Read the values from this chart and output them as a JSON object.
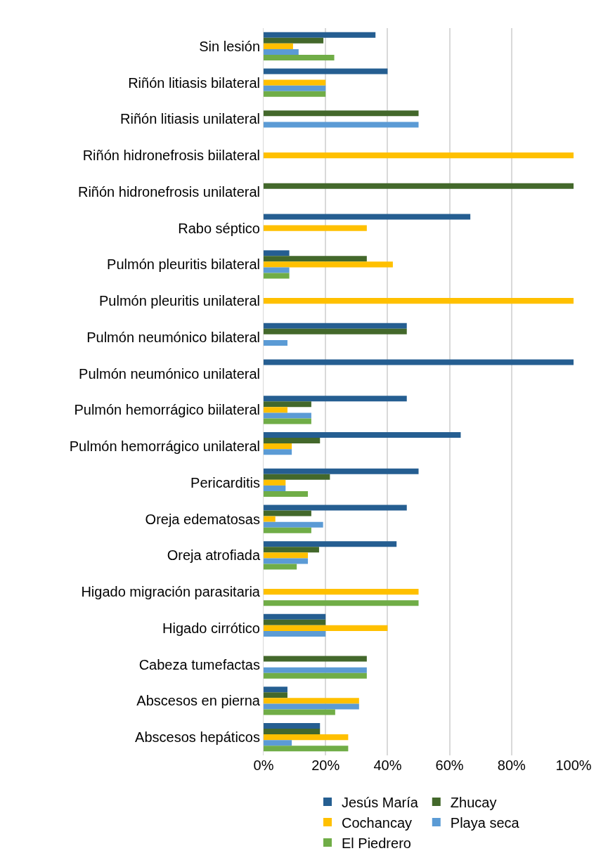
{
  "chart_data": {
    "type": "bar",
    "orientation": "horizontal",
    "categories": [
      "Sin lesión",
      "Riñón litiasis bilateral",
      "Riñón litiasis unilateral",
      "Riñón hidronefrosis biilateral",
      "Riñón hidronefrosis unilateral",
      "Rabo séptico",
      "Pulmón pleuritis bilateral",
      "Pulmón pleuritis unilateral",
      "Pulmón neumónico bilateral",
      "Pulmón neumónico unilateral",
      "Pulmón hemorrágico biilateral",
      "Pulmón hemorrágico unilateral",
      "Pericarditis",
      "Oreja edematosas",
      "Oreja atrofiada",
      "Higado migración parasitaria",
      "Higado cirrótico",
      "Cabeza tumefactas",
      "Abscesos en pierna",
      "Abscesos hepáticos"
    ],
    "series": [
      {
        "name": "Jesús María",
        "color": "#255e91",
        "values": [
          36.1,
          40,
          0,
          0,
          0,
          66.7,
          8.3,
          0,
          46.2,
          100,
          46.2,
          63.6,
          50,
          46.2,
          42.9,
          0,
          20,
          0,
          7.7,
          18.2
        ]
      },
      {
        "name": "Zhucay",
        "color": "#43682b",
        "values": [
          19.3,
          0,
          50,
          0,
          100,
          0,
          33.3,
          0,
          46.2,
          0,
          15.4,
          18.2,
          21.4,
          15.4,
          17.9,
          0,
          20,
          33.3,
          7.7,
          18.2
        ]
      },
      {
        "name": "Cochancay",
        "color": "#ffc000",
        "values": [
          9.5,
          20,
          0,
          100,
          0,
          33.3,
          41.7,
          100,
          0,
          0,
          7.7,
          9.1,
          7.1,
          3.8,
          14.3,
          50,
          40,
          0,
          30.8,
          27.3
        ]
      },
      {
        "name": "Playa seca",
        "color": "#5b9bd5",
        "values": [
          11.3,
          20,
          50,
          0,
          0,
          0,
          8.3,
          0,
          7.7,
          0,
          15.4,
          9.1,
          7.1,
          19.2,
          14.3,
          0,
          20,
          33.3,
          30.8,
          9.1
        ]
      },
      {
        "name": "El Piedrero",
        "color": "#70ad47",
        "values": [
          22.8,
          20,
          0,
          0,
          0,
          0,
          8.3,
          0,
          0,
          0,
          15.4,
          0,
          14.3,
          15.4,
          10.7,
          50,
          0,
          33.3,
          23.1,
          27.3
        ]
      }
    ],
    "xlim": [
      0,
      100
    ],
    "xticks": [
      {
        "value": 0,
        "label": "0%"
      },
      {
        "value": 20,
        "label": "20%"
      },
      {
        "value": 40,
        "label": "40%"
      },
      {
        "value": 60,
        "label": "60%"
      },
      {
        "value": 80,
        "label": "80%"
      },
      {
        "value": 100,
        "label": "100%"
      }
    ],
    "grid": "x",
    "legend": "bottom"
  }
}
